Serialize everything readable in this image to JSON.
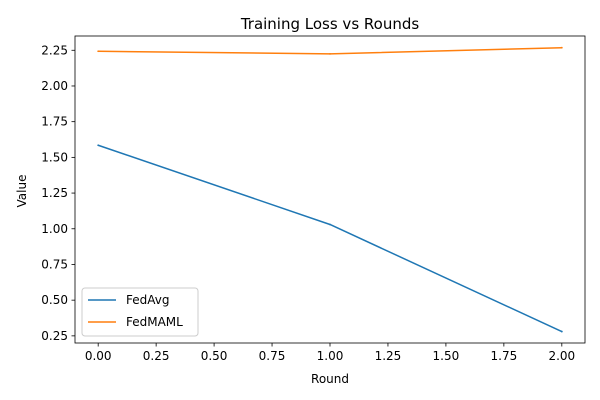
{
  "chart_data": {
    "type": "line",
    "title": "Training Loss vs Rounds",
    "xlabel": "Round",
    "ylabel": "Value",
    "x": [
      0,
      1,
      2
    ],
    "xlim": [
      -0.1,
      2.1
    ],
    "ylim": [
      0.2,
      2.35
    ],
    "xticks": [
      "0.00",
      "0.25",
      "0.50",
      "0.75",
      "1.00",
      "1.25",
      "1.50",
      "1.75",
      "2.00"
    ],
    "yticks": [
      "0.25",
      "0.50",
      "0.75",
      "1.00",
      "1.25",
      "1.50",
      "1.75",
      "2.00",
      "2.25"
    ],
    "grid": false,
    "legend": "lower-left",
    "series": [
      {
        "name": "FedAvg",
        "values": [
          1.585,
          1.03,
          0.28
        ],
        "color": "#1f77b4"
      },
      {
        "name": "FedMAML",
        "values": [
          2.243,
          2.225,
          2.268
        ],
        "color": "#ff7f0e"
      }
    ]
  }
}
